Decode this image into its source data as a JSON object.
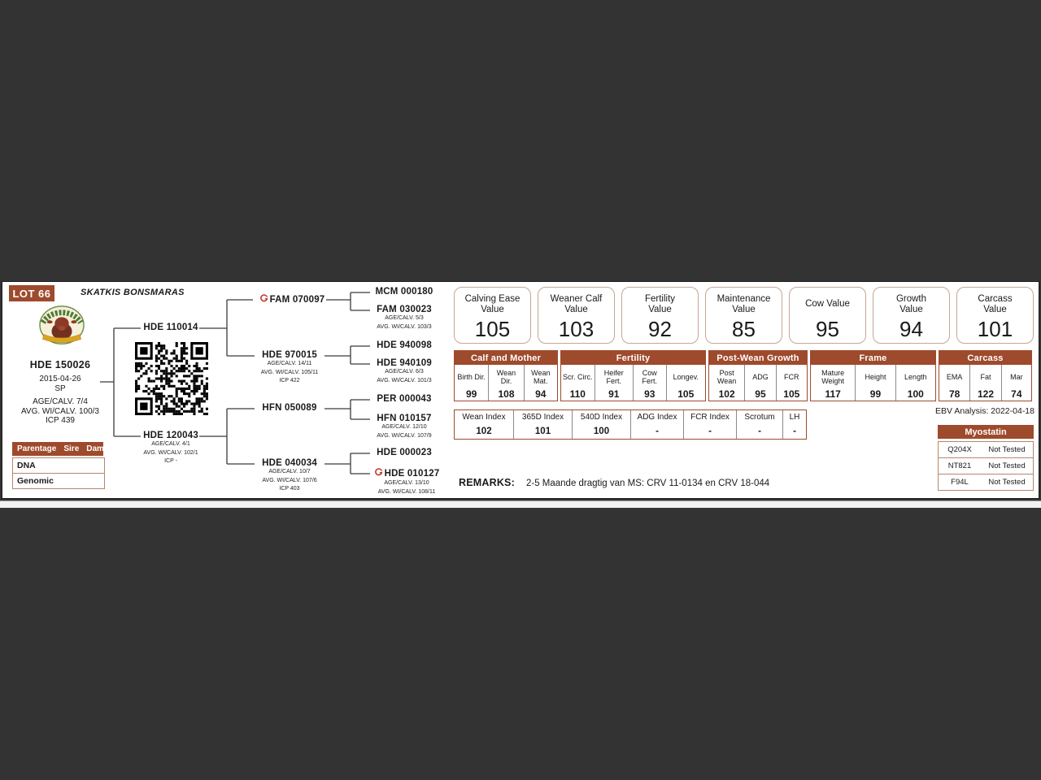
{
  "page": {
    "lot_label": "LOT 66",
    "farm_name": "SKATKIS BONSMARAS"
  },
  "colors": {
    "accent_brown": "#9e4a2c",
    "box_border": "#c8a496",
    "background": "#333333",
    "cert_red": "#c0392b"
  },
  "subject": {
    "id": "HDE 150026",
    "birth_date": "2015-04-26",
    "status": "SP",
    "age_calv": "AGE/CALV. 7/4",
    "avg_wi_calv": "AVG. WI/CALV. 100/3",
    "icp": "ICP 439"
  },
  "parentage": {
    "headers": [
      "Parentage",
      "Sire",
      "Dam"
    ],
    "rows": [
      "DNA",
      "Genomic"
    ]
  },
  "pedigree": {
    "sire": {
      "id": "HDE 110014"
    },
    "dam": {
      "id": "HDE 120043",
      "sub": [
        "AGE/CALV. 4/1",
        "AVG. WI/CALV. 102/1",
        "ICP -"
      ]
    },
    "gen3": [
      {
        "id": "FAM 070097"
      },
      {
        "id": "HDE 970015",
        "sub": [
          "AGE/CALV. 14/11",
          "AVG. WI/CALV. 105/11",
          "ICP 422"
        ]
      },
      {
        "id": "HFN 050089"
      },
      {
        "id": "HDE 040034",
        "sub": [
          "AGE/CALV. 10/7",
          "AVG. WI/CALV. 107/6",
          "ICP 403"
        ]
      }
    ],
    "gen4": [
      {
        "id": "MCM 000180"
      },
      {
        "id": "FAM 030023",
        "sub": [
          "AGE/CALV. 5/3",
          "AVG. WI/CALV. 103/3"
        ]
      },
      {
        "id": "HDE 940098"
      },
      {
        "id": "HDE 940109",
        "sub": [
          "AGE/CALV. 6/3",
          "AVG. WI/CALV. 101/3"
        ]
      },
      {
        "id": "PER 000043"
      },
      {
        "id": "HFN 010157",
        "sub": [
          "AGE/CALV. 12/10",
          "AVG. WI/CALV. 107/9"
        ]
      },
      {
        "id": "HDE 000023"
      },
      {
        "id": "HDE 010127",
        "sub": [
          "AGE/CALV. 13/10",
          "AVG. WI/CALV. 108/11"
        ]
      }
    ]
  },
  "value_boxes": [
    {
      "label": "Calving Ease\nValue",
      "value": "105"
    },
    {
      "label": "Weaner Calf\nValue",
      "value": "103"
    },
    {
      "label": "Fertility\nValue",
      "value": "92"
    },
    {
      "label": "Maintenance\nValue",
      "value": "85"
    },
    {
      "label": "Cow Value",
      "value": "95"
    },
    {
      "label": "Growth\nValue",
      "value": "94"
    },
    {
      "label": "Carcass\nValue",
      "value": "101"
    }
  ],
  "ebv_groups": [
    {
      "title": "Calf and Mother",
      "cols": [
        {
          "label": "Birth Dir.",
          "value": "99"
        },
        {
          "label": "Wean Dir.",
          "value": "108"
        },
        {
          "label": "Wean Mat.",
          "value": "94"
        }
      ]
    },
    {
      "title": "Fertility",
      "cols": [
        {
          "label": "Scr. Circ.",
          "value": "110"
        },
        {
          "label": "Heifer Fert.",
          "value": "91"
        },
        {
          "label": "Cow Fert.",
          "value": "93"
        },
        {
          "label": "Longev.",
          "value": "105"
        }
      ]
    },
    {
      "title": "Post-Wean Growth",
      "cols": [
        {
          "label": "Post Wean",
          "value": "102"
        },
        {
          "label": "ADG",
          "value": "95"
        },
        {
          "label": "FCR",
          "value": "105"
        }
      ]
    },
    {
      "title": "Frame",
      "cols": [
        {
          "label": "Mature Weight",
          "value": "117"
        },
        {
          "label": "Height",
          "value": "99"
        },
        {
          "label": "Length",
          "value": "100"
        }
      ]
    },
    {
      "title": "Carcass",
      "cols": [
        {
          "label": "EMA",
          "value": "78"
        },
        {
          "label": "Fat",
          "value": "122"
        },
        {
          "label": "Mar",
          "value": "74"
        }
      ]
    }
  ],
  "index_table": [
    {
      "label": "Wean Index",
      "value": "102"
    },
    {
      "label": "365D Index",
      "value": "101"
    },
    {
      "label": "540D Index",
      "value": "100"
    },
    {
      "label": "ADG Index",
      "value": "-"
    },
    {
      "label": "FCR Index",
      "value": "-"
    },
    {
      "label": "Scrotum",
      "value": "-"
    },
    {
      "label": "LH",
      "value": "-"
    }
  ],
  "ebv_analysis": "EBV Analysis: 2022-04-18",
  "myostatin": {
    "title": "Myostatin",
    "rows": [
      {
        "gene": "Q204X",
        "result": "Not Tested"
      },
      {
        "gene": "NT821",
        "result": "Not Tested"
      },
      {
        "gene": "F94L",
        "result": "Not Tested"
      }
    ]
  },
  "remarks": {
    "label": "REMARKS:",
    "text": "2-5 Maande dragtig van MS: CRV 11-0134 en CRV 18-044"
  }
}
